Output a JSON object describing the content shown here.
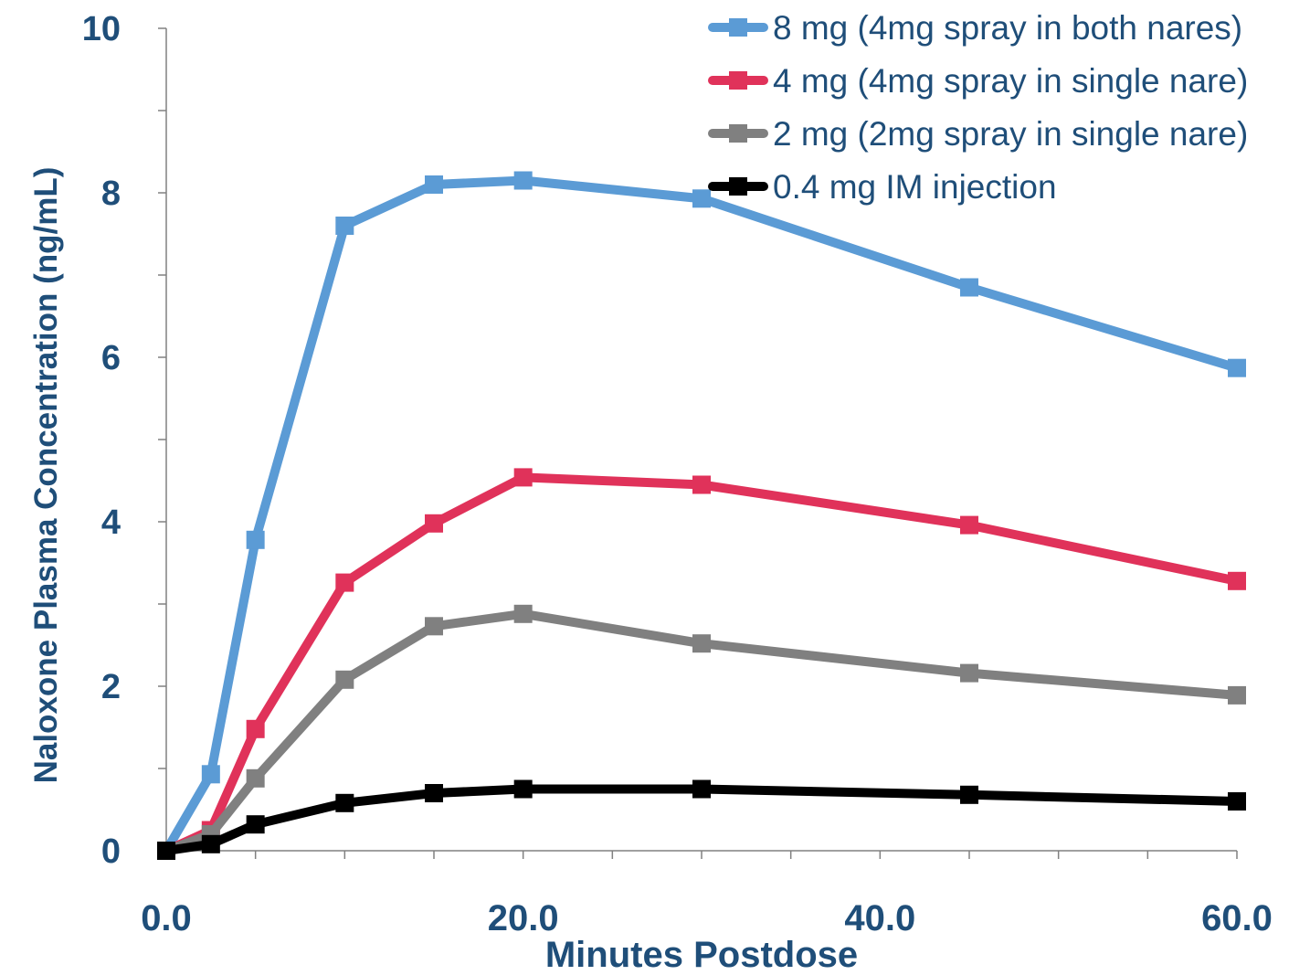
{
  "chart_data": {
    "type": "line",
    "title": "",
    "xlabel": "Minutes Postdose",
    "ylabel": "Naloxone Plasma Concentration (ng/mL)",
    "xlim": [
      0,
      60
    ],
    "ylim": [
      0,
      10
    ],
    "x_ticks": [
      "0.0",
      "20.0",
      "40.0",
      "60.0"
    ],
    "y_ticks": [
      "0",
      "2",
      "4",
      "6",
      "8",
      "10"
    ],
    "grid": false,
    "legend_position": "top-right",
    "series": [
      {
        "name": "8 mg (4mg spray in both nares)",
        "color": "#5b9bd5",
        "x": [
          0,
          2.5,
          5,
          10,
          15,
          20,
          30,
          45,
          60
        ],
        "y": [
          0,
          0.93,
          3.78,
          7.6,
          8.1,
          8.15,
          7.93,
          6.85,
          5.87
        ]
      },
      {
        "name": "4 mg (4mg spray in single nare)",
        "color": "#e0325a",
        "x": [
          0,
          2.5,
          5,
          10,
          15,
          20,
          30,
          45,
          60
        ],
        "y": [
          0,
          0.25,
          1.48,
          3.26,
          3.98,
          4.54,
          4.45,
          3.96,
          3.28
        ]
      },
      {
        "name": "2 mg (2mg spray in single nare)",
        "color": "#808080",
        "x": [
          0,
          2.5,
          5,
          10,
          15,
          20,
          30,
          45,
          60
        ],
        "y": [
          0,
          0.2,
          0.88,
          2.08,
          2.73,
          2.88,
          2.52,
          2.16,
          1.89
        ]
      },
      {
        "name": "0.4 mg IM injection",
        "color": "#000000",
        "x": [
          0,
          2.5,
          5,
          10,
          15,
          20,
          30,
          45,
          60
        ],
        "y": [
          0,
          0.08,
          0.32,
          0.58,
          0.7,
          0.75,
          0.75,
          0.68,
          0.6
        ]
      }
    ]
  }
}
